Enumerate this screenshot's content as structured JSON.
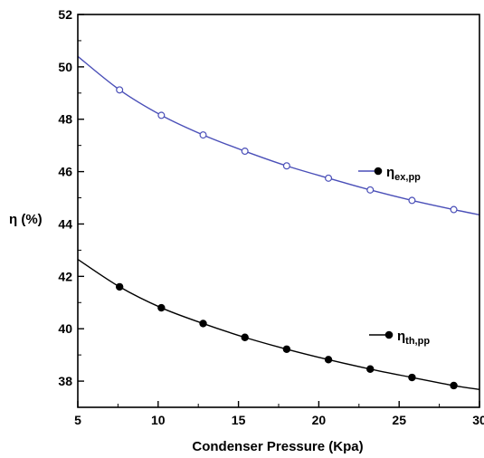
{
  "chart_data": {
    "type": "line",
    "xlabel": "Condenser Pressure (Kpa)",
    "ylabel": "η (%)",
    "xlim": [
      5,
      30
    ],
    "ylim": [
      37,
      52
    ],
    "xticks": [
      5,
      10,
      15,
      20,
      25,
      30
    ],
    "yticks": [
      38,
      40,
      42,
      44,
      46,
      48,
      50,
      52
    ],
    "grid": false,
    "legend_placement": "inline labels near curves",
    "series": [
      {
        "name": "ηex,pp",
        "label_main": "η",
        "label_sub": "ex,pp",
        "marker": "open-circle",
        "color": "#4a4fb8",
        "x": [
          5,
          7.6,
          10.2,
          12.8,
          15.4,
          18.0,
          20.6,
          23.2,
          25.8,
          28.4,
          30
        ],
        "values": [
          50.4,
          49.12,
          48.15,
          47.4,
          46.78,
          46.22,
          45.75,
          45.3,
          44.9,
          44.55,
          44.35
        ],
        "marker_indices": [
          1,
          2,
          3,
          4,
          5,
          6,
          7,
          8,
          9
        ]
      },
      {
        "name": "ηth,pp",
        "label_main": "η",
        "label_sub": "th,pp",
        "marker": "filled-circle",
        "color": "#000000",
        "x": [
          5,
          7.6,
          10.2,
          12.8,
          15.4,
          18.0,
          20.6,
          23.2,
          25.8,
          28.4,
          30
        ],
        "values": [
          42.65,
          41.6,
          40.8,
          40.2,
          39.67,
          39.22,
          38.82,
          38.46,
          38.14,
          37.83,
          37.68
        ],
        "marker_indices": [
          1,
          2,
          3,
          4,
          5,
          6,
          7,
          8,
          9
        ]
      }
    ]
  }
}
